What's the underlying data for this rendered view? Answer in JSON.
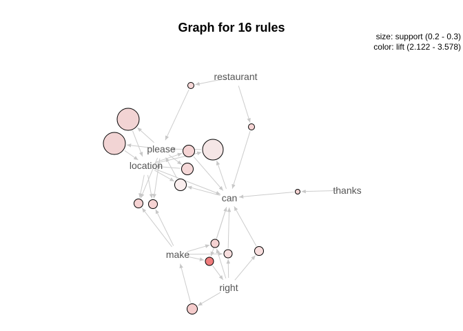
{
  "title": "Graph for 16 rules",
  "legend": {
    "size": "size: support (0.2 - 0.3)",
    "color": "color: lift (2.122 - 3.578)"
  },
  "colors": {
    "edge": "#cccccc",
    "label": "#555555",
    "node_stroke": "#000000"
  },
  "items": [
    {
      "id": "restaurant",
      "label": "restaurant"
    },
    {
      "id": "please",
      "label": "please"
    },
    {
      "id": "location",
      "label": "location"
    },
    {
      "id": "can",
      "label": "can"
    },
    {
      "id": "thanks",
      "label": "thanks"
    },
    {
      "id": "make",
      "label": "make"
    },
    {
      "id": "right",
      "label": "right"
    }
  ],
  "rules": [
    {
      "id": "r1",
      "fill": "#f2d4d4"
    },
    {
      "id": "r2",
      "fill": "#f2d4d4"
    },
    {
      "id": "r3",
      "fill": "#f5e6e6"
    },
    {
      "id": "r4",
      "fill": "#f5d4d4"
    },
    {
      "id": "r5",
      "fill": "#f5d8d8"
    },
    {
      "id": "r6",
      "fill": "#faeeee"
    },
    {
      "id": "r7",
      "fill": "#f5d2d2"
    },
    {
      "id": "r8",
      "fill": "#f5d2d2"
    },
    {
      "id": "r9",
      "fill": "#f7d8d8"
    },
    {
      "id": "r10",
      "fill": "#f5d4d4"
    },
    {
      "id": "r11",
      "fill": "#f5d2d2"
    },
    {
      "id": "r12",
      "fill": "#f5d4d4"
    },
    {
      "id": "r13",
      "fill": "#f7dede"
    },
    {
      "id": "r14",
      "fill": "#f07d7d"
    },
    {
      "id": "r15",
      "fill": "#f7dddd"
    },
    {
      "id": "r16",
      "fill": "#f5cccc"
    }
  ]
}
